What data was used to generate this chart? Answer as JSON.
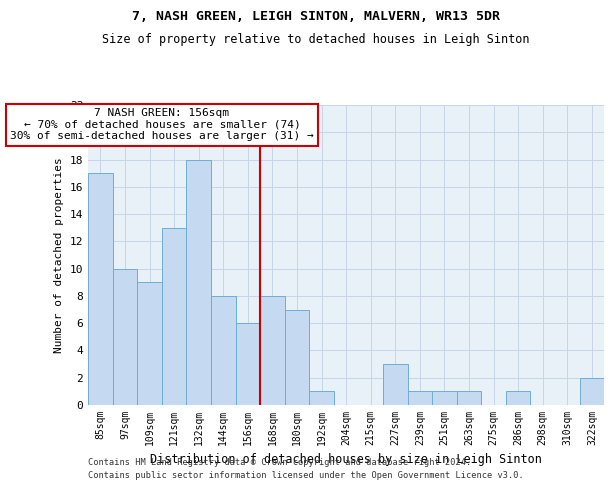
{
  "title": "7, NASH GREEN, LEIGH SINTON, MALVERN, WR13 5DR",
  "subtitle": "Size of property relative to detached houses in Leigh Sinton",
  "xlabel": "Distribution of detached houses by size in Leigh Sinton",
  "ylabel": "Number of detached properties",
  "categories": [
    "85sqm",
    "97sqm",
    "109sqm",
    "121sqm",
    "132sqm",
    "144sqm",
    "156sqm",
    "168sqm",
    "180sqm",
    "192sqm",
    "204sqm",
    "215sqm",
    "227sqm",
    "239sqm",
    "251sqm",
    "263sqm",
    "275sqm",
    "286sqm",
    "298sqm",
    "310sqm",
    "322sqm"
  ],
  "values": [
    17,
    10,
    9,
    13,
    18,
    8,
    6,
    8,
    7,
    1,
    0,
    0,
    3,
    1,
    1,
    1,
    0,
    1,
    0,
    0,
    2
  ],
  "highlight_index": 6,
  "bar_color": "#c5d9f0",
  "bar_edge_color": "#6baed6",
  "highlight_line_color": "#cc0000",
  "annotation_box_color": "#cc0000",
  "ylim": [
    0,
    22
  ],
  "yticks": [
    0,
    2,
    4,
    6,
    8,
    10,
    12,
    14,
    16,
    18,
    20,
    22
  ],
  "annotation_line1": "7 NASH GREEN: 156sqm",
  "annotation_line2": "← 70% of detached houses are smaller (74)",
  "annotation_line3": "30% of semi-detached houses are larger (31) →",
  "footer_line1": "Contains HM Land Registry data © Crown copyright and database right 2024.",
  "footer_line2": "Contains public sector information licensed under the Open Government Licence v3.0.",
  "background_color": "#ffffff",
  "plot_bg_color": "#e8f0f8",
  "grid_color": "#c8d4e8"
}
